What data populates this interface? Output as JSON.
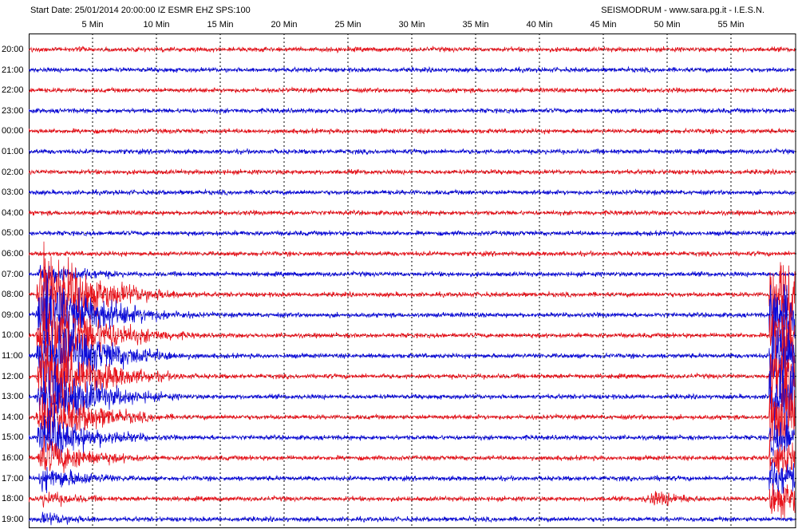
{
  "chart_data": {
    "type": "line",
    "subtype": "helicorder-seismogram",
    "title": "Start Date: 25/01/2014 20:00:00 IZ ESMR EHZ SPS:100",
    "credit": "SEISMODRUM - www.sara.pg.it - I.E.S.N.",
    "x_ticks": [
      "5 Min",
      "10 Min",
      "15 Min",
      "20 Min",
      "25 Min",
      "30 Min",
      "35 Min",
      "40 Min",
      "45 Min",
      "50 Min",
      "55 Min"
    ],
    "x_tick_values": [
      5,
      10,
      15,
      20,
      25,
      30,
      35,
      40,
      45,
      50,
      55
    ],
    "xlim": [
      0,
      60
    ],
    "row_labels": [
      "20:00",
      "21:00",
      "22:00",
      "23:00",
      "00:00",
      "01:00",
      "02:00",
      "03:00",
      "04:00",
      "05:00",
      "06:00",
      "07:00",
      "08:00",
      "09:00",
      "10:00",
      "11:00",
      "12:00",
      "13:00",
      "14:00",
      "15:00",
      "16:00",
      "17:00",
      "18:00",
      "19:00"
    ],
    "series_colors": [
      "#e8141c",
      "#0a0ad8"
    ],
    "grid": true,
    "events": [
      {
        "row": "08:00",
        "start_min": 0.5,
        "end_min": 14,
        "peak_rows": 7,
        "desc": "large teleseismic event"
      },
      {
        "row": "17:00",
        "start_min": 47.5,
        "end_min": 58,
        "peak_rows": 1.2,
        "desc": "local event"
      },
      {
        "row": "08:00",
        "start_min": 58,
        "end_min": 60,
        "peak_rows": 5,
        "desc": "event at end of trace"
      }
    ]
  }
}
